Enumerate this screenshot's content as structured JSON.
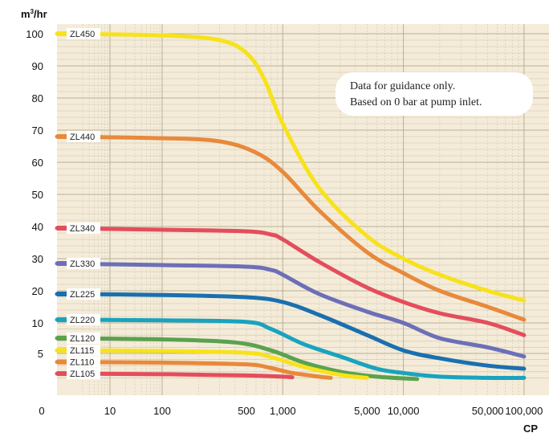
{
  "chart_data": {
    "type": "line",
    "title": "",
    "xlabel": "CP",
    "ylabel": "m³/hr",
    "x_scale": "log",
    "x_ticks": [
      {
        "value": 10,
        "label": "10"
      },
      {
        "value": 100,
        "label": "100"
      },
      {
        "value": 500,
        "label": "500"
      },
      {
        "value": 1000,
        "label": "1,000"
      },
      {
        "value": 5000,
        "label": "5,000"
      },
      {
        "value": 10000,
        "label": "10,000"
      },
      {
        "value": 50000,
        "label": "50,000"
      },
      {
        "value": 100000,
        "label": "100,000"
      }
    ],
    "x_origin_label": "0",
    "y_ticks": [
      {
        "value": 100,
        "label": "100"
      },
      {
        "value": 90,
        "label": "90"
      },
      {
        "value": 80,
        "label": "80"
      },
      {
        "value": 70,
        "label": "70"
      },
      {
        "value": 60,
        "label": "60"
      },
      {
        "value": 50,
        "label": "50"
      },
      {
        "value": 40,
        "label": "40"
      },
      {
        "value": 30,
        "label": "30"
      },
      {
        "value": 20,
        "label": "20"
      },
      {
        "value": 10,
        "label": "10"
      },
      {
        "value": 5,
        "label": "5"
      }
    ],
    "grid": true,
    "annotation": [
      "Data for guidance only.",
      "Based on 0 bar at pump inlet."
    ],
    "series": [
      {
        "name": "ZL450",
        "color": "#f7e21b",
        "x": [
          1,
          100,
          300,
          500,
          700,
          1000,
          2000,
          5000,
          10000,
          20000,
          50000,
          100000
        ],
        "y": [
          100,
          99.5,
          98,
          94,
          86,
          72,
          52,
          37,
          30,
          25,
          20,
          17
        ]
      },
      {
        "name": "ZL440",
        "color": "#e8893b",
        "x": [
          1,
          100,
          300,
          600,
          1000,
          2000,
          5000,
          10000,
          20000,
          50000,
          100000
        ],
        "y": [
          68,
          67.5,
          66.5,
          63,
          57,
          45,
          32,
          25.5,
          20,
          15,
          11
        ]
      },
      {
        "name": "ZL340",
        "color": "#e44d5d",
        "x": [
          1,
          100,
          500,
          800,
          1000,
          2000,
          5000,
          10000,
          20000,
          50000,
          100000
        ],
        "y": [
          39.5,
          39,
          38.5,
          37.5,
          36,
          29,
          21,
          16.5,
          13,
          10,
          8
        ]
      },
      {
        "name": "ZL330",
        "color": "#6c6fb8",
        "x": [
          1,
          100,
          500,
          800,
          1000,
          2000,
          5000,
          10000,
          20000,
          50000,
          100000
        ],
        "y": [
          28.5,
          28,
          27.5,
          26.5,
          25,
          19,
          13.5,
          10,
          7.5,
          6,
          4.5
        ]
      },
      {
        "name": "ZL225",
        "color": "#1a6fb0",
        "x": [
          1,
          100,
          500,
          1000,
          2000,
          5000,
          10000,
          20000,
          50000,
          100000
        ],
        "y": [
          19,
          18.7,
          18,
          16.5,
          12.5,
          8,
          5.5,
          4.2,
          3,
          2.5
        ]
      },
      {
        "name": "ZL220",
        "color": "#19a3bf",
        "x": [
          1,
          100,
          500,
          800,
          1500,
          3000,
          6000,
          10000,
          20000,
          50000,
          100000
        ],
        "y": [
          11,
          10.8,
          10.3,
          9,
          6.5,
          4.5,
          2.5,
          1.8,
          1.2,
          1,
          1
        ]
      },
      {
        "name": "ZL120",
        "color": "#5aa24e",
        "x": [
          1,
          100,
          400,
          800,
          1500,
          3000,
          6000,
          13000
        ],
        "y": [
          7.5,
          7.3,
          6.8,
          5.5,
          3.5,
          2,
          1.2,
          0.8
        ]
      },
      {
        "name": "ZL115",
        "color": "#f7e21b",
        "x": [
          1,
          100,
          500,
          800,
          1500,
          3000,
          5000
        ],
        "y": [
          5.5,
          5.4,
          5.1,
          4.4,
          2.8,
          1.5,
          1
        ]
      },
      {
        "name": "ZL110",
        "color": "#e8893b",
        "x": [
          1,
          100,
          500,
          800,
          1200,
          2000,
          2500
        ],
        "y": [
          3.6,
          3.5,
          3.2,
          2.6,
          1.8,
          1.2,
          1
        ]
      },
      {
        "name": "ZL105",
        "color": "#e44d5d",
        "x": [
          1,
          100,
          500,
          1000,
          1200
        ],
        "y": [
          1.7,
          1.6,
          1.4,
          1.2,
          1.1
        ]
      }
    ]
  }
}
